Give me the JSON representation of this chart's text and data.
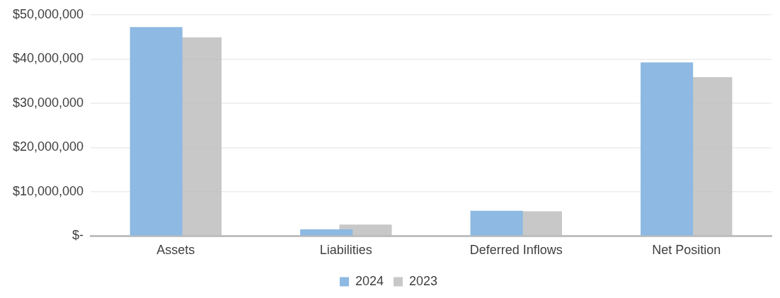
{
  "chart_data": {
    "type": "bar",
    "categories": [
      "Assets",
      "Liabilities",
      "Deferred Inflows",
      "Net Position"
    ],
    "series": [
      {
        "name": "2024",
        "color": "#8db9e2",
        "values": [
          47200000,
          1500000,
          5700000,
          39200000
        ]
      },
      {
        "name": "2023",
        "color": "#bcbcbc",
        "values": [
          44900000,
          2600000,
          5600000,
          35900000
        ]
      }
    ],
    "ylim": [
      0,
      50000000
    ],
    "yticks": [
      {
        "value": 0,
        "label": "$-"
      },
      {
        "value": 10000000,
        "label": "$10,000,000"
      },
      {
        "value": 20000000,
        "label": "$20,000,000"
      },
      {
        "value": 30000000,
        "label": "$30,000,000"
      },
      {
        "value": 40000000,
        "label": "$40,000,000"
      },
      {
        "value": 50000000,
        "label": "$50,000,000"
      }
    ],
    "grid": "y",
    "legend": "bottom"
  }
}
